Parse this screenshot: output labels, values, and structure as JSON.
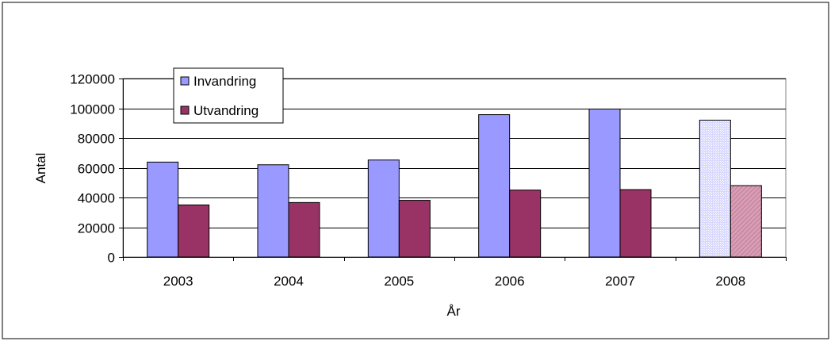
{
  "chart_data": {
    "type": "bar",
    "categories": [
      "2003",
      "2004",
      "2005",
      "2006",
      "2007",
      "2008"
    ],
    "series": [
      {
        "name": "Invandring",
        "values": [
          63800,
          62000,
          65200,
          95700,
          99500,
          92000
        ],
        "color": "#9999FF"
      },
      {
        "name": "Utvandring",
        "values": [
          35000,
          36600,
          38100,
          45000,
          45300,
          48000
        ],
        "color": "#993366"
      }
    ],
    "highlighted_category": "2008",
    "xlabel": "År",
    "ylabel": "Antal",
    "ylim": [
      0,
      120000
    ],
    "yticks": [
      "0",
      "20000",
      "40000",
      "60000",
      "80000",
      "100000",
      "120000"
    ],
    "grid": "horizontal",
    "legend_position": "top-left"
  }
}
